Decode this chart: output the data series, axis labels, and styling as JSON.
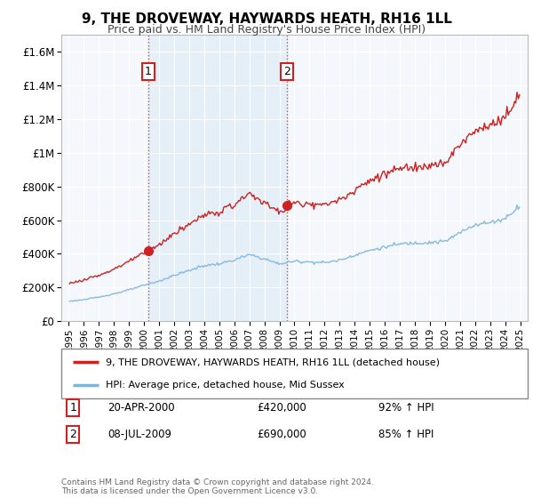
{
  "title": "9, THE DROVEWAY, HAYWARDS HEATH, RH16 1LL",
  "subtitle": "Price paid vs. HM Land Registry's House Price Index (HPI)",
  "legend_line1": "9, THE DROVEWAY, HAYWARDS HEATH, RH16 1LL (detached house)",
  "legend_line2": "HPI: Average price, detached house, Mid Sussex",
  "sale1_date": "20-APR-2000",
  "sale1_price": "£420,000",
  "sale1_hpi": "92% ↑ HPI",
  "sale1_year": 2000.29,
  "sale1_value": 420000,
  "sale2_date": "08-JUL-2009",
  "sale2_price": "£690,000",
  "sale2_hpi": "85% ↑ HPI",
  "sale2_year": 2009.52,
  "sale2_value": 690000,
  "red_line_color": "#cc2222",
  "blue_line_color": "#7fb3d9",
  "grid_color": "#dddddd",
  "annotation_box_color": "#cc2222",
  "footer_text": "Contains HM Land Registry data © Crown copyright and database right 2024.\nThis data is licensed under the Open Government Licence v3.0.",
  "yticks": [
    0,
    200000,
    400000,
    600000,
    800000,
    1000000,
    1200000,
    1400000,
    1600000
  ],
  "ytick_labels": [
    "£0",
    "£200K",
    "£400K",
    "£600K",
    "£800K",
    "£1M",
    "£1.2M",
    "£1.4M",
    "£1.6M"
  ],
  "ylim": [
    0,
    1700000
  ],
  "xlim_start": 1994.5,
  "xlim_end": 2025.5
}
